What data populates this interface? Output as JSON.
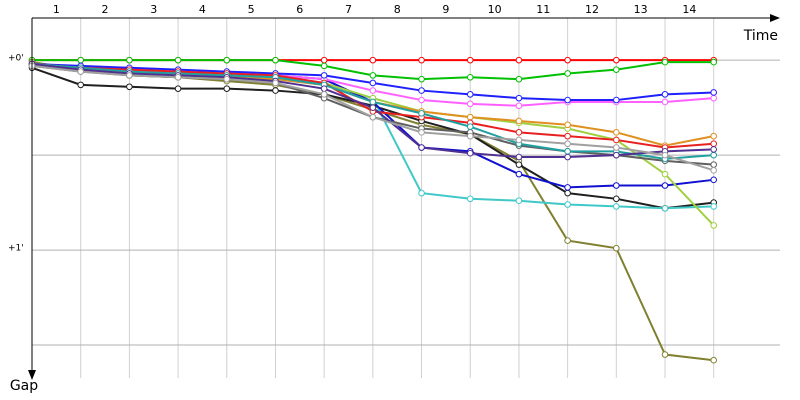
{
  "chart_data": {
    "type": "line",
    "x_label": "Time",
    "y_label": "Gap",
    "xlim": [
      0,
      15.3
    ],
    "ylim": [
      -0.18,
      1.7
    ],
    "xticks": [
      {
        "value": 0.5,
        "label": "1"
      },
      {
        "value": 1.5,
        "label": "2"
      },
      {
        "value": 2.5,
        "label": "3"
      },
      {
        "value": 3.5,
        "label": "4"
      },
      {
        "value": 4.5,
        "label": "5"
      },
      {
        "value": 5.5,
        "label": "6"
      },
      {
        "value": 6.5,
        "label": "7"
      },
      {
        "value": 7.5,
        "label": "8"
      },
      {
        "value": 8.5,
        "label": "9"
      },
      {
        "value": 9.5,
        "label": "10"
      },
      {
        "value": 10.5,
        "label": "11"
      },
      {
        "value": 11.5,
        "label": "12"
      },
      {
        "value": 12.5,
        "label": "13"
      },
      {
        "value": 13.5,
        "label": "14"
      }
    ],
    "yticks": [
      {
        "value": 0,
        "label": "+0'"
      },
      {
        "value": 1,
        "label": "+1'"
      }
    ],
    "xgrid": [
      0,
      1,
      2,
      3,
      4,
      5,
      6,
      7,
      8,
      9,
      10,
      11,
      12,
      13,
      14
    ],
    "ygrid": [
      0,
      0.5,
      1,
      1.5
    ],
    "grid": true,
    "x": [
      0,
      1,
      2,
      3,
      4,
      5,
      6,
      7,
      8,
      9,
      10,
      11,
      12,
      13,
      14
    ],
    "series": [
      {
        "color": "#ff0000",
        "values": [
          0,
          0,
          0,
          0,
          0,
          0,
          0,
          0,
          0,
          0,
          0,
          0,
          0,
          0,
          0
        ]
      },
      {
        "color": "#00c000",
        "values": [
          0,
          0,
          0,
          0,
          0,
          0,
          0.03,
          0.08,
          0.1,
          0.09,
          0.1,
          0.07,
          0.05,
          0.01,
          0.01
        ]
      },
      {
        "color": "#808030",
        "values": [
          0.01,
          0.05,
          0.08,
          0.09,
          0.11,
          0.13,
          0.18,
          0.26,
          0.34,
          0.39,
          0.53,
          0.95,
          0.99,
          1.55,
          1.58
        ]
      },
      {
        "color": "#202020",
        "values": [
          0.04,
          0.13,
          0.14,
          0.15,
          0.15,
          0.16,
          0.18,
          0.24,
          0.32,
          0.39,
          0.55,
          0.7,
          0.73,
          0.78,
          0.75
        ]
      },
      {
        "color": "#40c8c8",
        "values": [
          0.02,
          0.05,
          0.07,
          0.08,
          0.09,
          0.1,
          0.13,
          0.2,
          0.7,
          0.73,
          0.74,
          0.76,
          0.77,
          0.78,
          0.77
        ]
      },
      {
        "color": "#1010d0",
        "values": [
          0.02,
          0.04,
          0.05,
          0.06,
          0.07,
          0.08,
          0.1,
          0.22,
          0.46,
          0.48,
          0.6,
          0.67,
          0.66,
          0.66,
          0.63
        ]
      },
      {
        "color": "#ff60ff",
        "values": [
          0.02,
          0.04,
          0.05,
          0.06,
          0.07,
          0.08,
          0.1,
          0.16,
          0.21,
          0.23,
          0.24,
          0.22,
          0.22,
          0.22,
          0.2
        ]
      },
      {
        "color": "#2020ff",
        "values": [
          0.02,
          0.03,
          0.04,
          0.05,
          0.06,
          0.07,
          0.08,
          0.12,
          0.16,
          0.18,
          0.2,
          0.21,
          0.21,
          0.18,
          0.17
        ]
      },
      {
        "color": "#a0d040",
        "values": [
          0.02,
          0.04,
          0.06,
          0.07,
          0.08,
          0.09,
          0.12,
          0.2,
          0.27,
          0.3,
          0.33,
          0.36,
          0.42,
          0.6,
          0.87
        ]
      },
      {
        "color": "#606060",
        "values": [
          0.03,
          0.06,
          0.08,
          0.09,
          0.1,
          0.12,
          0.2,
          0.3,
          0.36,
          0.38,
          0.45,
          0.48,
          0.5,
          0.53,
          0.55
        ]
      },
      {
        "color": "#e09020",
        "values": [
          0.02,
          0.05,
          0.07,
          0.08,
          0.09,
          0.1,
          0.13,
          0.22,
          0.27,
          0.3,
          0.32,
          0.34,
          0.38,
          0.45,
          0.4
        ]
      },
      {
        "color": "#e82020",
        "values": [
          0.02,
          0.04,
          0.05,
          0.06,
          0.07,
          0.08,
          0.12,
          0.27,
          0.3,
          0.33,
          0.38,
          0.4,
          0.42,
          0.46,
          0.44
        ]
      },
      {
        "color": "#20a0a0",
        "values": [
          0.02,
          0.04,
          0.06,
          0.07,
          0.08,
          0.09,
          0.13,
          0.22,
          0.28,
          0.35,
          0.44,
          0.48,
          0.48,
          0.52,
          0.5
        ]
      },
      {
        "color": "#503090",
        "values": [
          0.02,
          0.05,
          0.07,
          0.08,
          0.09,
          0.11,
          0.15,
          0.25,
          0.46,
          0.49,
          0.51,
          0.51,
          0.5,
          0.48,
          0.47
        ]
      },
      {
        "color": "#a0a0a0",
        "values": [
          0.03,
          0.06,
          0.08,
          0.09,
          0.1,
          0.12,
          0.18,
          0.3,
          0.38,
          0.4,
          0.42,
          0.44,
          0.46,
          0.5,
          0.58
        ]
      }
    ]
  }
}
